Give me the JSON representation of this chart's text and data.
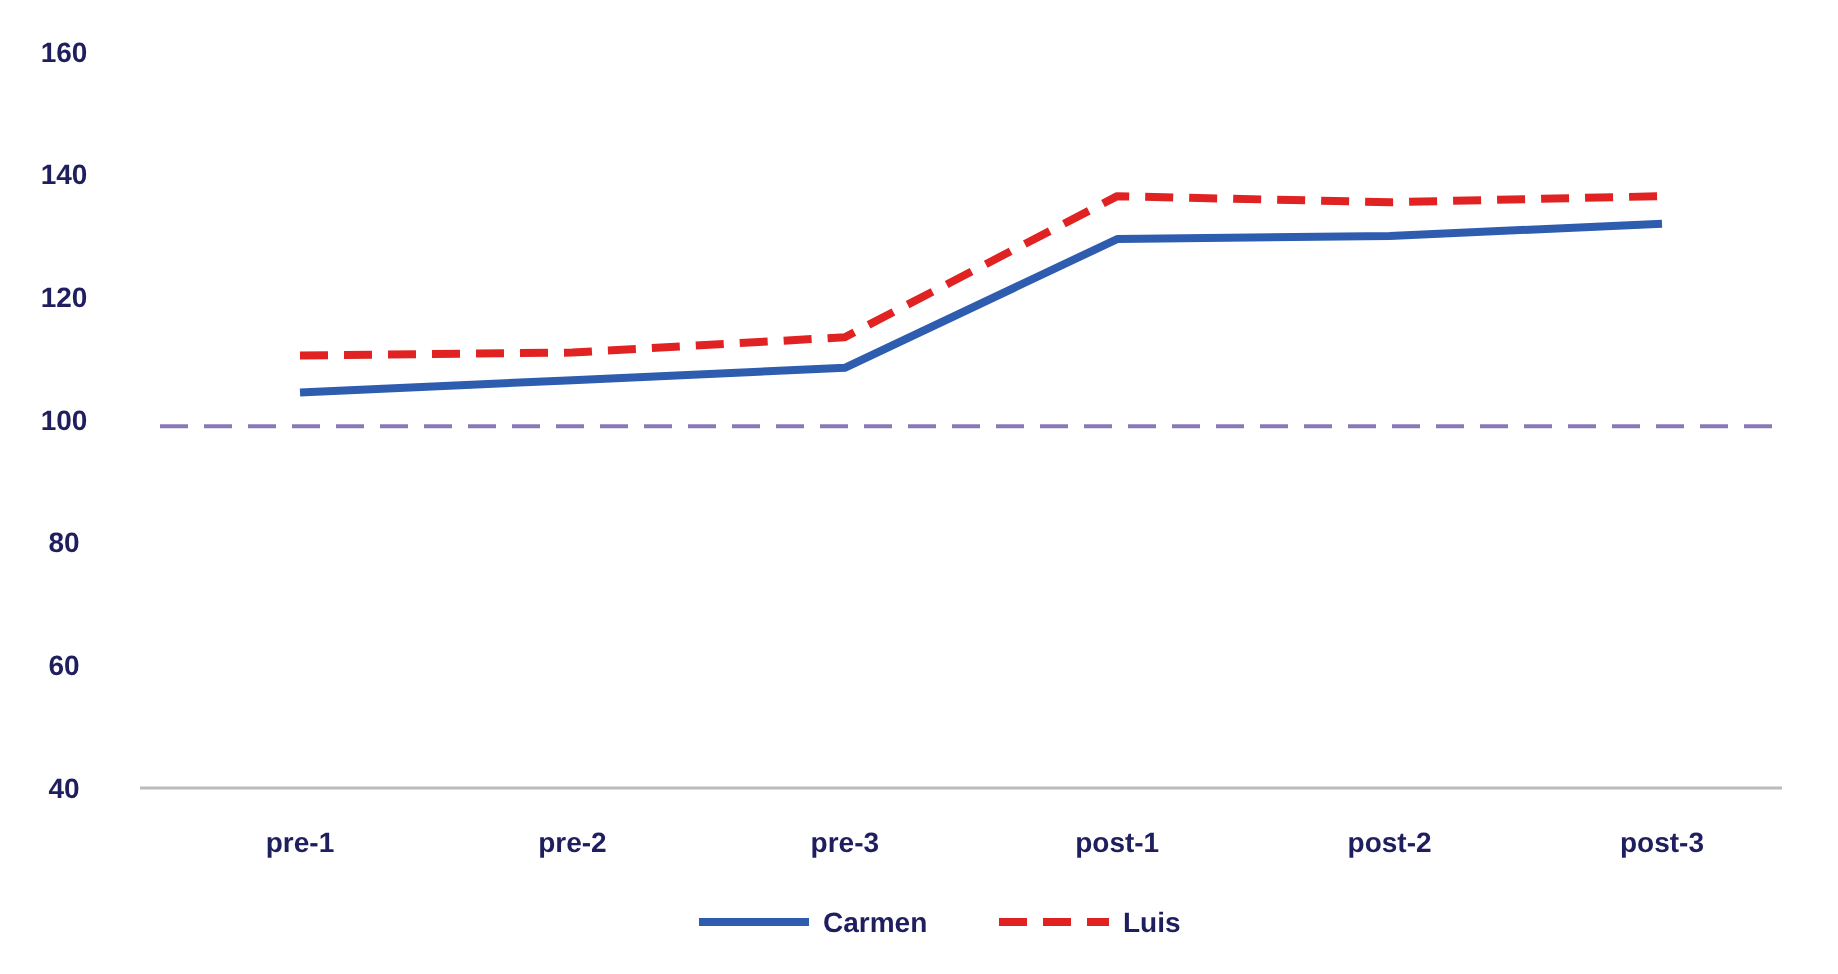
{
  "chart_data": {
    "type": "line",
    "categories": [
      "pre-1",
      "pre-2",
      "pre-3",
      "post-1",
      "post-2",
      "post-3"
    ],
    "series": [
      {
        "name": "Carmen",
        "color": "#2e5db0",
        "line_style": "solid",
        "values": [
          104.5,
          106.5,
          108.5,
          129.5,
          130,
          132
        ]
      },
      {
        "name": "Luis",
        "color": "#e02222",
        "line_style": "dashed",
        "values": [
          110.5,
          111,
          113.5,
          136.5,
          135.5,
          136.5
        ]
      }
    ],
    "ylim": [
      40,
      160
    ],
    "yticks": [
      40,
      60,
      80,
      100,
      120,
      140,
      160
    ],
    "grid": false,
    "legend": "bottom",
    "marker": "none",
    "ref_lines": [
      {
        "axis": "y",
        "value": 99,
        "color": "#8a78b8",
        "line_style": "dashed"
      }
    ]
  }
}
